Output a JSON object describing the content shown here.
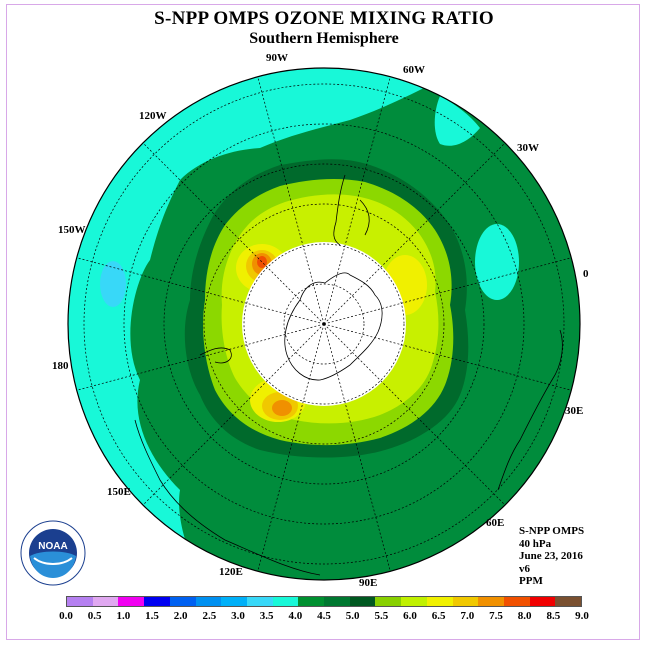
{
  "title": "S-NPP OMPS OZONE MIXING RATIO",
  "subtitle": "Southern Hemisphere",
  "longitude_labels": [
    "90W",
    "60W",
    "120W",
    "30W",
    "150W",
    "0",
    "180",
    "30E",
    "150E",
    "60E",
    "120E",
    "90E"
  ],
  "info": {
    "instrument": "S-NPP OMPS",
    "level": "40 hPa",
    "date": "June 23, 2016",
    "version": "v6",
    "units": "PPM"
  },
  "logo": {
    "text": "NOAA",
    "icon": "noaa-logo-icon"
  },
  "colorbar": {
    "ticks": [
      "0.0",
      "0.5",
      "1.0",
      "1.5",
      "2.0",
      "2.5",
      "3.0",
      "3.5",
      "4.0",
      "4.5",
      "5.0",
      "5.5",
      "6.0",
      "6.5",
      "7.0",
      "7.5",
      "8.0",
      "8.5",
      "9.0"
    ],
    "colors": [
      "#b580f0",
      "#e0a8f0",
      "#f000f0",
      "#0000f0",
      "#0060f0",
      "#0090f0",
      "#00b0f8",
      "#38d8f8",
      "#18f8d8",
      "#009030",
      "#007830",
      "#005820",
      "#88d000",
      "#c0f000",
      "#f0f000",
      "#f0c800",
      "#f09000",
      "#f05000",
      "#f00000",
      "#7a5030"
    ]
  },
  "field_colors": {
    "background": "#18f8d8",
    "band_45": "#008c3c",
    "band_50": "#006a2c",
    "band_55": "#8cd800",
    "band_60": "#c8f000",
    "band_65": "#f0f000",
    "band_70": "#f0c800",
    "band_75": "#f09000",
    "band_80": "#f05000",
    "pole_mask": "#ffffff",
    "low_patch": "#38d8f8"
  }
}
